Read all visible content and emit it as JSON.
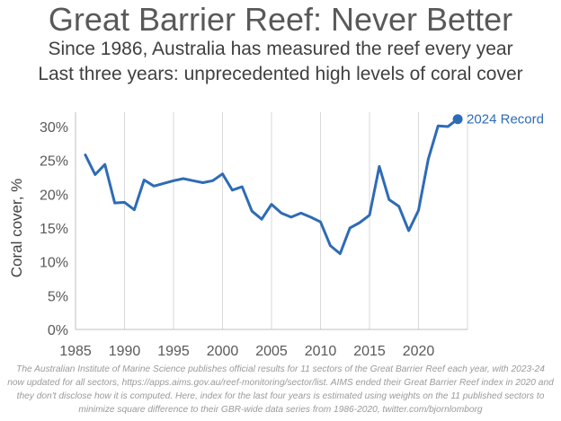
{
  "chart_data": {
    "type": "line",
    "title": "Great Barrier Reef: Never Better",
    "subtitle_1": "Since 1986, Australia has measured the reef every year",
    "subtitle_2": "Last three years: unprecedented high levels of coral cover",
    "ylabel": "Coral cover, %",
    "xlabel": "",
    "xlim": [
      1985,
      2025
    ],
    "ylim": [
      0,
      30
    ],
    "x_ticks": [
      1985,
      1990,
      1995,
      2000,
      2005,
      2010,
      2015,
      2020
    ],
    "y_ticks": [
      0,
      5,
      10,
      15,
      20,
      25,
      30
    ],
    "y_tick_labels": [
      "0%",
      "5%",
      "10%",
      "15%",
      "20%",
      "25%",
      "30%"
    ],
    "grid": "vertical",
    "line_color": "#2e6bb6",
    "series": [
      {
        "x": [
          1986,
          1987,
          1988,
          1989,
          1990,
          1991,
          1992,
          1993,
          1994,
          1995,
          1996,
          1997,
          1998,
          1999,
          2000,
          2001,
          2002,
          2003,
          2004,
          2005,
          2006,
          2007,
          2008,
          2009,
          2010,
          2011,
          2012,
          2013,
          2014,
          2015,
          2016,
          2017,
          2018,
          2019,
          2020,
          2021,
          2022,
          2023,
          2024
        ],
        "values": [
          25.8,
          22.9,
          24.4,
          18.7,
          18.8,
          17.7,
          22.1,
          21.2,
          21.6,
          22.0,
          22.3,
          22.0,
          21.7,
          22.0,
          23.0,
          20.6,
          21.1,
          17.5,
          16.3,
          18.5,
          17.2,
          16.6,
          17.2,
          16.6,
          15.9,
          12.4,
          11.2,
          15.0,
          15.8,
          16.9,
          24.1,
          19.2,
          18.2,
          14.6,
          17.6,
          25.2,
          30.1,
          30.0,
          31.1
        ]
      }
    ],
    "annotation": {
      "x": 2024,
      "y": 31.1,
      "text": "2024 Record"
    },
    "footnote": "The Australian Institute of Marine Science publishes official results for 11 sectors of the Great Barrier Reef each year, with 2023-24 now updated for all sectors, https://apps.aims.gov.au/reef-monitoring/sector/list. AIMS ended their Great Barrier Reef index in 2020 and they don't disclose how it is computed. Here, index for the last four years is estimated using weights on the 11 published sectors to minimize square difference to their GBR-wide data series from 1986-2020, twitter.com/bjornlomborg"
  }
}
